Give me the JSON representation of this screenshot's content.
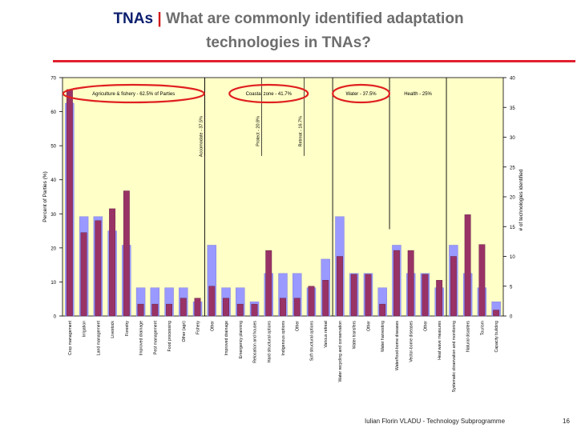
{
  "slide": {
    "title_main": "TNAs",
    "title_sep": "|",
    "title_sub1": "What are commonly identified adaptation",
    "title_sub2": "technologies in TNAs?",
    "footer": "Iulian Florin VLADU - Technology Subprogramme",
    "page_number": "16"
  },
  "colors": {
    "plot_bg": "#ffffc8",
    "bar_percent": "#9999ff",
    "bar_count": "#993366",
    "ellipse": "#e02020",
    "title_rule": "#e0202e"
  },
  "chart_data": {
    "type": "bar",
    "title": "",
    "ylabel": "Percent of Parties (%)",
    "y2label": "# of technologies identified",
    "ylim": [
      0,
      70
    ],
    "y2lim": [
      0,
      40
    ],
    "yticks": [
      0,
      10,
      20,
      30,
      40,
      50,
      60,
      70
    ],
    "y2ticks": [
      0,
      5,
      10,
      15,
      20,
      25,
      30,
      35,
      40
    ],
    "grid": false,
    "legend": "none",
    "categories": [
      "Crop management",
      "Irrigation",
      "Land management",
      "Livestock",
      "Forestry",
      "Improved drainage",
      "Pest management",
      "Food processing",
      "Other (agri)",
      "Fishery",
      "Other",
      "Improved drainage",
      "Emergency planning",
      "Relocation and houses",
      "Hard structural options",
      "Indigenous options",
      "Other",
      "Soft structural options",
      "Various retreat",
      "Water recycling and conservation",
      "Water transfers",
      "Other",
      "Water harvesting",
      "Water/food-borne diseases",
      "Vector-borne diseases",
      "Other",
      "Heat wave measures",
      "Systematic observation and monitoring",
      "Natural disasters",
      "Tourism",
      "Capacity building"
    ],
    "series": [
      {
        "name": "",
        "axis": "left",
        "values": [
          62.5,
          29.2,
          29.2,
          25,
          20.8,
          8.3,
          8.3,
          8.3,
          8.3,
          4.2,
          20.8,
          8.3,
          8.3,
          4.2,
          12.5,
          12.5,
          12.5,
          8.3,
          16.7,
          29.2,
          12.5,
          12.5,
          8.3,
          20.8,
          12.5,
          12.5,
          8.3,
          20.8,
          12.5,
          8.3,
          4.2
        ]
      },
      {
        "name": "",
        "axis": "right",
        "values": [
          38,
          14,
          16,
          18,
          21,
          2,
          2,
          2,
          3,
          3,
          5,
          3,
          2,
          2,
          11,
          3,
          3,
          5,
          6,
          10,
          7,
          7,
          2,
          11,
          11,
          7,
          6,
          10,
          17,
          12,
          1
        ]
      }
    ],
    "sector_labels": [
      {
        "text": "Agriculture & fishery - 62.5% of Parties",
        "from": 0,
        "to": 9,
        "circled": true
      },
      {
        "text": "Coastal zone - 41.7%",
        "from": 10,
        "to": 18,
        "circled": true
      },
      {
        "text": "Water - 37.5%",
        "from": 19,
        "to": 22,
        "circled": true
      },
      {
        "text": "Health - 25%",
        "from": 23,
        "to": 26,
        "circled": false
      }
    ],
    "sub_labels": [
      {
        "text": "Accomodate - 37.5%",
        "after": 9
      },
      {
        "text": "Protect - 20.8%",
        "after": 13
      },
      {
        "text": "Retreat - 16.7%",
        "after": 16
      }
    ],
    "separators_after": [
      9,
      18,
      22,
      26
    ]
  }
}
